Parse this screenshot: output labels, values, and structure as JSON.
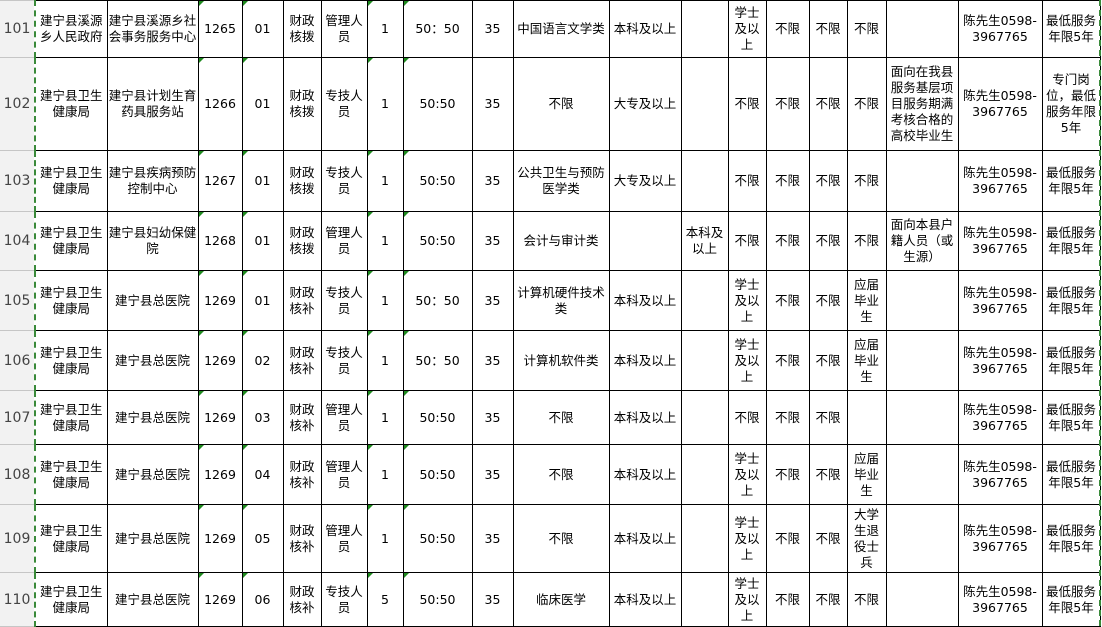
{
  "sheet": {
    "rows": [
      {
        "num": "101",
        "cells": [
          "建宁县溪源乡人民政府",
          "建宁县溪源乡社会事务服务中心",
          "1265",
          "01",
          "财政核拨",
          "管理人员",
          "1",
          "50：50",
          "35",
          "中国语言文学类",
          "本科及以上",
          "",
          "学士及以上",
          "不限",
          "不限",
          "不限",
          "",
          "陈先生0598-3967765",
          "最低服务年限5年"
        ]
      },
      {
        "num": "102",
        "cells": [
          "建宁县卫生健康局",
          "建宁县计划生育药具服务站",
          "1266",
          "01",
          "财政核拨",
          "专技人员",
          "1",
          "50:50",
          "35",
          "不限",
          "大专及以上",
          "",
          "不限",
          "不限",
          "不限",
          "不限",
          "面向在我县服务基层项目服务期满考核合格的高校毕业生",
          "陈先生0598-3967765",
          "专门岗位，最低服务年限5年"
        ]
      },
      {
        "num": "103",
        "cells": [
          "建宁县卫生健康局",
          "建宁县疾病预防控制中心",
          "1267",
          "01",
          "财政核拨",
          "专技人员",
          "1",
          "50:50",
          "35",
          "公共卫生与预防医学类",
          "大专及以上",
          "",
          "不限",
          "不限",
          "不限",
          "不限",
          "",
          "陈先生0598-3967765",
          "最低服务年限5年"
        ]
      },
      {
        "num": "104",
        "cells": [
          "建宁县卫生健康局",
          "建宁县妇幼保健院",
          "1268",
          "01",
          "财政核拨",
          "管理人员",
          "1",
          "50:50",
          "35",
          "会计与审计类",
          "",
          "本科及以上",
          "不限",
          "不限",
          "不限",
          "不限",
          "面向本县户籍人员（或生源）",
          "陈先生0598-3967765",
          "最低服务年限5年"
        ]
      },
      {
        "num": "105",
        "cells": [
          "建宁县卫生健康局",
          "建宁县总医院",
          "1269",
          "01",
          "财政核补",
          "专技人员",
          "1",
          "50：50",
          "35",
          "计算机硬件技术类",
          "本科及以上",
          "",
          "学士及以上",
          "不限",
          "不限",
          "应届毕业生",
          "",
          "陈先生0598-3967765",
          "最低服务年限5年"
        ]
      },
      {
        "num": "106",
        "cells": [
          "建宁县卫生健康局",
          "建宁县总医院",
          "1269",
          "02",
          "财政核补",
          "专技人员",
          "1",
          "50：50",
          "35",
          "计算机软件类",
          "本科及以上",
          "",
          "学士及以上",
          "不限",
          "不限",
          "应届毕业生",
          "",
          "陈先生0598-3967765",
          "最低服务年限5年"
        ]
      },
      {
        "num": "107",
        "cells": [
          "建宁县卫生健康局",
          "建宁县总医院",
          "1269",
          "03",
          "财政核补",
          "管理人员",
          "1",
          "50:50",
          "35",
          "不限",
          "本科及以上",
          "",
          "不限",
          "不限",
          "不限",
          "",
          "",
          "陈先生0598-3967765",
          "最低服务年限5年"
        ]
      },
      {
        "num": "108",
        "cells": [
          "建宁县卫生健康局",
          "建宁县总医院",
          "1269",
          "04",
          "财政核补",
          "管理人员",
          "1",
          "50:50",
          "35",
          "不限",
          "本科及以上",
          "",
          "学士及以上",
          "不限",
          "不限",
          "应届毕业生",
          "",
          "陈先生0598-3967765",
          "最低服务年限5年"
        ]
      },
      {
        "num": "109",
        "cells": [
          "建宁县卫生健康局",
          "建宁县总医院",
          "1269",
          "05",
          "财政核补",
          "管理人员",
          "1",
          "50:50",
          "35",
          "不限",
          "本科及以上",
          "",
          "学士及以上",
          "不限",
          "不限",
          "大学生退役士兵",
          "",
          "陈先生0598-3967765",
          "最低服务年限5年"
        ]
      },
      {
        "num": "110",
        "cells": [
          "建宁县卫生健康局",
          "建宁县总医院",
          "1269",
          "06",
          "财政核补",
          "专技人员",
          "5",
          "50:50",
          "35",
          "临床医学",
          "本科及以上",
          "",
          "学士及以上",
          "不限",
          "不限",
          "不限",
          "",
          "陈先生0598-3967765",
          "最低服务年限5年"
        ]
      }
    ]
  }
}
